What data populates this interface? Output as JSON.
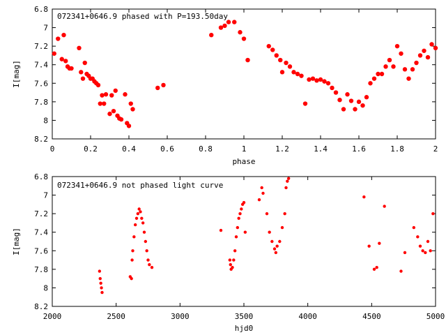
{
  "chart_data": [
    {
      "type": "scatter",
      "title": "072341+0646.9 phased with P=193.50day",
      "xlabel": "phase",
      "ylabel": "I[mag]",
      "xlim": [
        0,
        2
      ],
      "ylim": [
        8.2,
        6.8
      ],
      "y_inverted": true,
      "xticks": [
        0,
        0.2,
        0.4,
        0.6,
        0.8,
        1,
        1.2,
        1.4,
        1.6,
        1.8,
        2
      ],
      "xtick_labels": [
        "0",
        "0.2",
        "0.4",
        "0.6",
        "0.8",
        "1",
        "1.2",
        "1.4",
        "1.6",
        "1.8",
        "2"
      ],
      "yticks": [
        6.8,
        7,
        7.2,
        7.4,
        7.6,
        7.8,
        8,
        8.2
      ],
      "ytick_labels": [
        "6.8",
        "7",
        "7.2",
        "7.4",
        "7.6",
        "7.8",
        "8",
        "8.2"
      ],
      "grid": false,
      "color": "#ff0000",
      "x": [
        0.01,
        0.03,
        0.05,
        0.06,
        0.07,
        0.08,
        0.09,
        0.1,
        0.14,
        0.15,
        0.16,
        0.17,
        0.18,
        0.19,
        0.2,
        0.21,
        0.22,
        0.23,
        0.24,
        0.25,
        0.26,
        0.27,
        0.28,
        0.3,
        0.31,
        0.32,
        0.33,
        0.34,
        0.35,
        0.36,
        0.38,
        0.39,
        0.4,
        0.41,
        0.42,
        0.55,
        0.58,
        0.83,
        0.88,
        0.9,
        0.92,
        0.95,
        0.98,
        1.0,
        1.02,
        1.13,
        1.15,
        1.17,
        1.19,
        1.2,
        1.22,
        1.24,
        1.26,
        1.28,
        1.3,
        1.32,
        1.34,
        1.36,
        1.38,
        1.4,
        1.42,
        1.44,
        1.46,
        1.48,
        1.5,
        1.52,
        1.54,
        1.56,
        1.58,
        1.6,
        1.62,
        1.64,
        1.66,
        1.68,
        1.7,
        1.72,
        1.74,
        1.76,
        1.78,
        1.8,
        1.82,
        1.84,
        1.86,
        1.88,
        1.9,
        1.92,
        1.94,
        1.96,
        1.98,
        2.0
      ],
      "y": [
        7.28,
        7.12,
        7.34,
        7.08,
        7.36,
        7.42,
        7.44,
        7.44,
        7.22,
        7.48,
        7.55,
        7.38,
        7.5,
        7.52,
        7.55,
        7.55,
        7.58,
        7.6,
        7.62,
        7.82,
        7.73,
        7.82,
        7.72,
        7.93,
        7.73,
        7.9,
        7.68,
        7.95,
        7.98,
        7.99,
        7.72,
        8.03,
        8.06,
        7.82,
        7.88,
        7.65,
        7.62,
        7.08,
        7.0,
        6.98,
        6.94,
        6.94,
        7.05,
        7.12,
        7.35,
        7.2,
        7.24,
        7.3,
        7.35,
        7.48,
        7.38,
        7.42,
        7.48,
        7.5,
        7.52,
        7.82,
        7.56,
        7.55,
        7.57,
        7.56,
        7.58,
        7.6,
        7.65,
        7.7,
        7.78,
        7.88,
        7.72,
        7.79,
        7.88,
        7.8,
        7.84,
        7.75,
        7.6,
        7.55,
        7.5,
        7.5,
        7.42,
        7.35,
        7.42,
        7.2,
        7.28,
        7.45,
        7.55,
        7.45,
        7.38,
        7.3,
        7.25,
        7.32,
        7.18,
        7.22
      ]
    },
    {
      "type": "scatter",
      "title": "072341+0646.9 not phased light curve",
      "xlabel": "hjd0",
      "ylabel": "I[mag]",
      "xlim": [
        2000,
        5000
      ],
      "ylim": [
        8.2,
        6.8
      ],
      "y_inverted": true,
      "xticks": [
        2000,
        2500,
        3000,
        3500,
        4000,
        4500,
        5000
      ],
      "xtick_labels": [
        "2000",
        "2500",
        "3000",
        "3500",
        "4000",
        "4500",
        "5000"
      ],
      "yticks": [
        6.8,
        7,
        7.2,
        7.4,
        7.6,
        7.8,
        8,
        8.2
      ],
      "ytick_labels": [
        "6.8",
        "7",
        "7.2",
        "7.4",
        "7.6",
        "7.8",
        "8",
        "8.2"
      ],
      "grid": false,
      "color": "#ff0000",
      "x": [
        2370,
        2375,
        2380,
        2385,
        2390,
        2610,
        2620,
        2625,
        2630,
        2640,
        2650,
        2660,
        2670,
        2680,
        2690,
        2700,
        2710,
        2720,
        2730,
        2740,
        2750,
        2760,
        2780,
        3320,
        3390,
        3395,
        3400,
        3410,
        3420,
        3430,
        3440,
        3450,
        3460,
        3470,
        3480,
        3490,
        3500,
        3510,
        3620,
        3640,
        3650,
        3680,
        3700,
        3720,
        3740,
        3750,
        3760,
        3780,
        3800,
        3820,
        3830,
        3840,
        3850,
        4440,
        4480,
        4520,
        4540,
        4560,
        4600,
        4730,
        4760,
        4830,
        4860,
        4880,
        4900,
        4920,
        4940,
        4960,
        4980
      ],
      "y": [
        7.82,
        7.9,
        7.95,
        8.0,
        8.05,
        7.88,
        7.9,
        7.7,
        7.6,
        7.45,
        7.32,
        7.25,
        7.2,
        7.15,
        7.18,
        7.25,
        7.3,
        7.4,
        7.5,
        7.6,
        7.7,
        7.75,
        7.78,
        7.38,
        7.7,
        7.75,
        7.8,
        7.78,
        7.7,
        7.6,
        7.45,
        7.35,
        7.25,
        7.2,
        7.15,
        7.1,
        7.08,
        7.4,
        7.05,
        6.92,
        6.98,
        7.2,
        7.4,
        7.5,
        7.58,
        7.62,
        7.55,
        7.5,
        7.35,
        7.2,
        6.92,
        6.85,
        6.82,
        7.02,
        7.55,
        7.8,
        7.78,
        7.52,
        7.12,
        7.82,
        7.62,
        7.35,
        7.45,
        7.55,
        7.6,
        7.62,
        7.5,
        7.6,
        7.2
      ]
    }
  ]
}
